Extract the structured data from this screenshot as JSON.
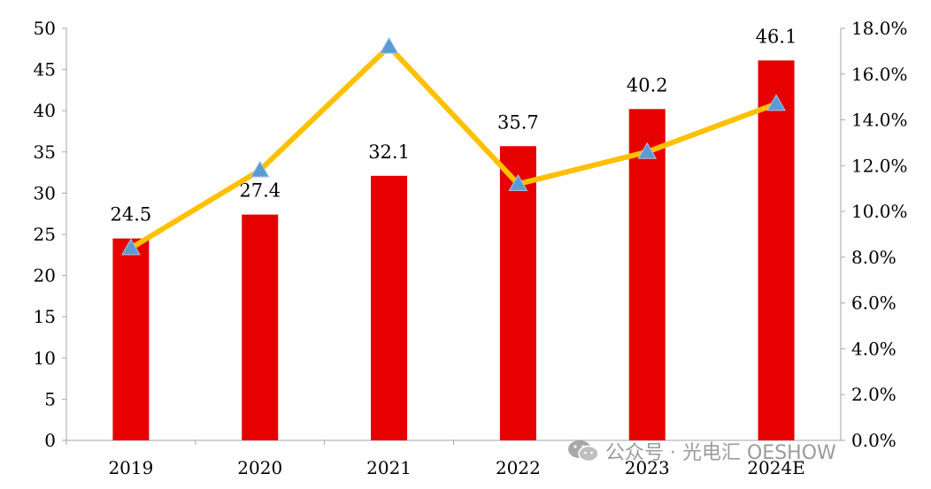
{
  "chart_data": {
    "type": "bar+line",
    "title": "",
    "categories": [
      "2019",
      "2020",
      "2021",
      "2022",
      "2023",
      "2024E"
    ],
    "series": [
      {
        "type": "bar",
        "axis": "left",
        "color": "#e60000",
        "values": [
          24.5,
          27.4,
          32.1,
          35.7,
          40.2,
          46.1
        ],
        "labels": [
          "24.5",
          "27.4",
          "32.1",
          "35.7",
          "40.2",
          "46.1"
        ]
      },
      {
        "type": "line",
        "axis": "right",
        "color": "#ffc000",
        "marker": "triangle",
        "marker_color": "#5b9bd5",
        "values": [
          8.4,
          11.8,
          17.2,
          11.2,
          12.6,
          14.7
        ]
      }
    ],
    "y_left": {
      "min": 0,
      "max": 50,
      "step": 5,
      "ticks": [
        "0",
        "5",
        "10",
        "15",
        "20",
        "25",
        "30",
        "35",
        "40",
        "45",
        "50"
      ]
    },
    "y_right": {
      "min": 0,
      "max": 18,
      "step": 2,
      "ticks": [
        "0.0%",
        "2.0%",
        "4.0%",
        "6.0%",
        "8.0%",
        "10.0%",
        "12.0%",
        "14.0%",
        "16.0%",
        "18.0%"
      ]
    },
    "grid": false,
    "legend": "none"
  },
  "watermark": {
    "text": "公众号 · 光电汇 OESHOW"
  }
}
